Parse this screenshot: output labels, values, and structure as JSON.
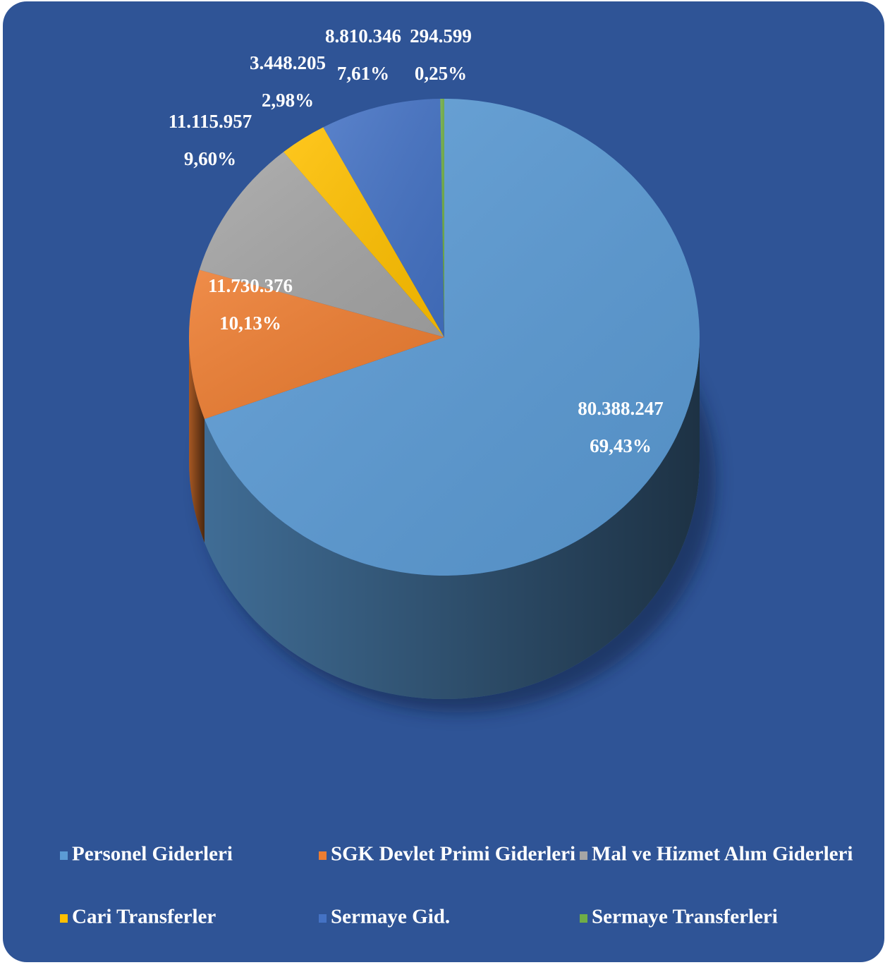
{
  "chart_data": {
    "type": "pie3d",
    "categories": [
      "Personel Giderleri",
      "SGK Devlet Primi Giderleri",
      "Mal ve Hizmet Alım Giderleri",
      "Cari Transferler",
      "Sermaye Gid.",
      "Sermaye Transferleri"
    ],
    "values": [
      80388247,
      11730376,
      11115957,
      3448205,
      8810346,
      294599
    ],
    "value_labels": [
      "80.388.247",
      "11.730.376",
      "11.115.957",
      "3.448.205",
      "8.810.346",
      "294.599"
    ],
    "percentage_labels": [
      "69,43%",
      "10,13%",
      "9,60%",
      "2,98%",
      "7,61%",
      "0,25%"
    ],
    "colors": [
      "#5b9bd5",
      "#ed7d31",
      "#a5a5a5",
      "#ffc000",
      "#4472c4",
      "#70ad47"
    ],
    "legend": "bottom"
  }
}
